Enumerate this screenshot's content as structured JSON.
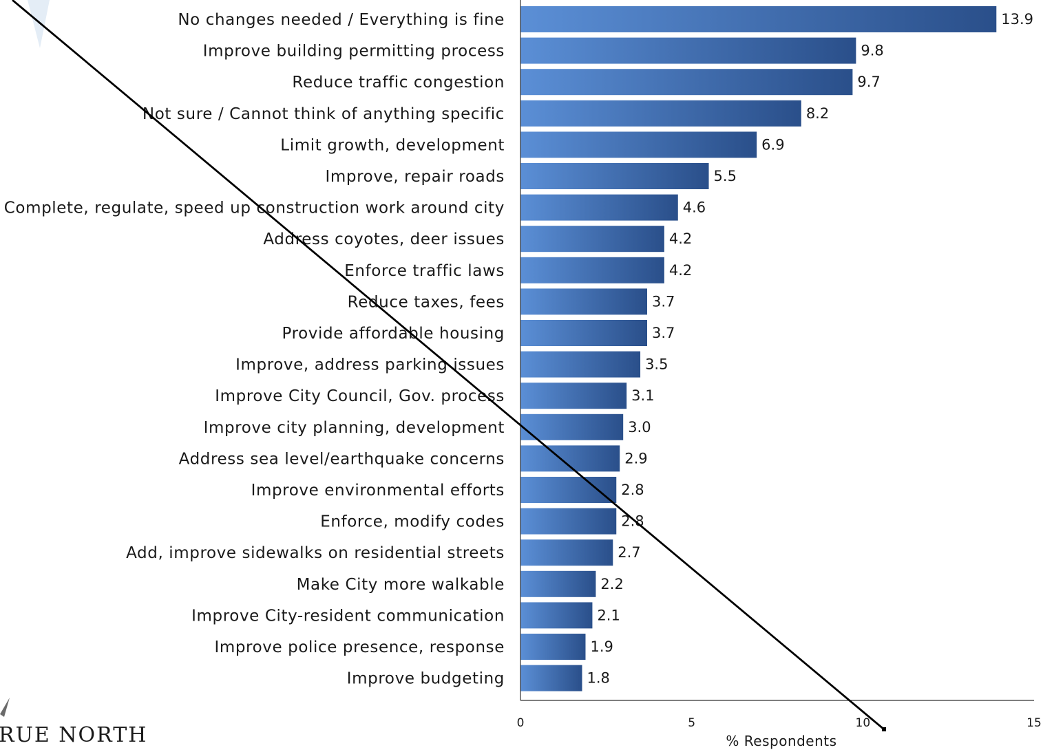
{
  "chart_data": {
    "type": "bar",
    "orientation": "horizontal",
    "categories": [
      "No changes needed / Everything is fine",
      "Improve building permitting process",
      "Reduce traffic congestion",
      "Not sure / Cannot think of anything specific",
      "Limit growth, development",
      "Improve, repair roads",
      "Complete, regulate, speed up construction work around city",
      "Address coyotes, deer issues",
      "Enforce traffic laws",
      "Reduce taxes, fees",
      "Provide affordable housing",
      "Improve, address parking issues",
      "Improve City Council, Gov. process",
      "Improve city planning, development",
      "Address sea level/earthquake concerns",
      "Improve environmental efforts",
      "Enforce, modify codes",
      "Add, improve sidewalks on residential streets",
      "Make City more walkable",
      "Improve City-resident communication",
      "Improve police presence, response",
      "Improve budgeting"
    ],
    "values": [
      13.9,
      9.8,
      9.7,
      8.2,
      6.9,
      5.5,
      4.6,
      4.2,
      4.2,
      3.7,
      3.7,
      3.5,
      3.1,
      3.0,
      2.9,
      2.8,
      2.8,
      2.7,
      2.2,
      2.1,
      1.9,
      1.8
    ],
    "value_labels": [
      "13.9",
      "9.8",
      "9.7",
      "8.2",
      "6.9",
      "5.5",
      "4.6",
      "4.2",
      "4.2",
      "3.7",
      "3.7",
      "3.5",
      "3.1",
      "3.0",
      "2.9",
      "2.8",
      "2.8",
      "2.7",
      "2.2",
      "2.1",
      "1.9",
      "1.8"
    ],
    "xlabel": "% Respondents",
    "ylabel": "",
    "xlim": [
      0,
      15
    ],
    "xticks": [
      0,
      5,
      10,
      15
    ],
    "tick_labels": [
      "0",
      "5",
      "10",
      "15"
    ],
    "grid": false,
    "legend": "none",
    "colors": {
      "bar_light": "#5b8fd6",
      "bar_dark": "#2a4f8a",
      "axis": "#333333",
      "text": "#1a1a1a",
      "overlay_line": "#000000"
    }
  },
  "logo": {
    "text": "RUE NORTH"
  }
}
